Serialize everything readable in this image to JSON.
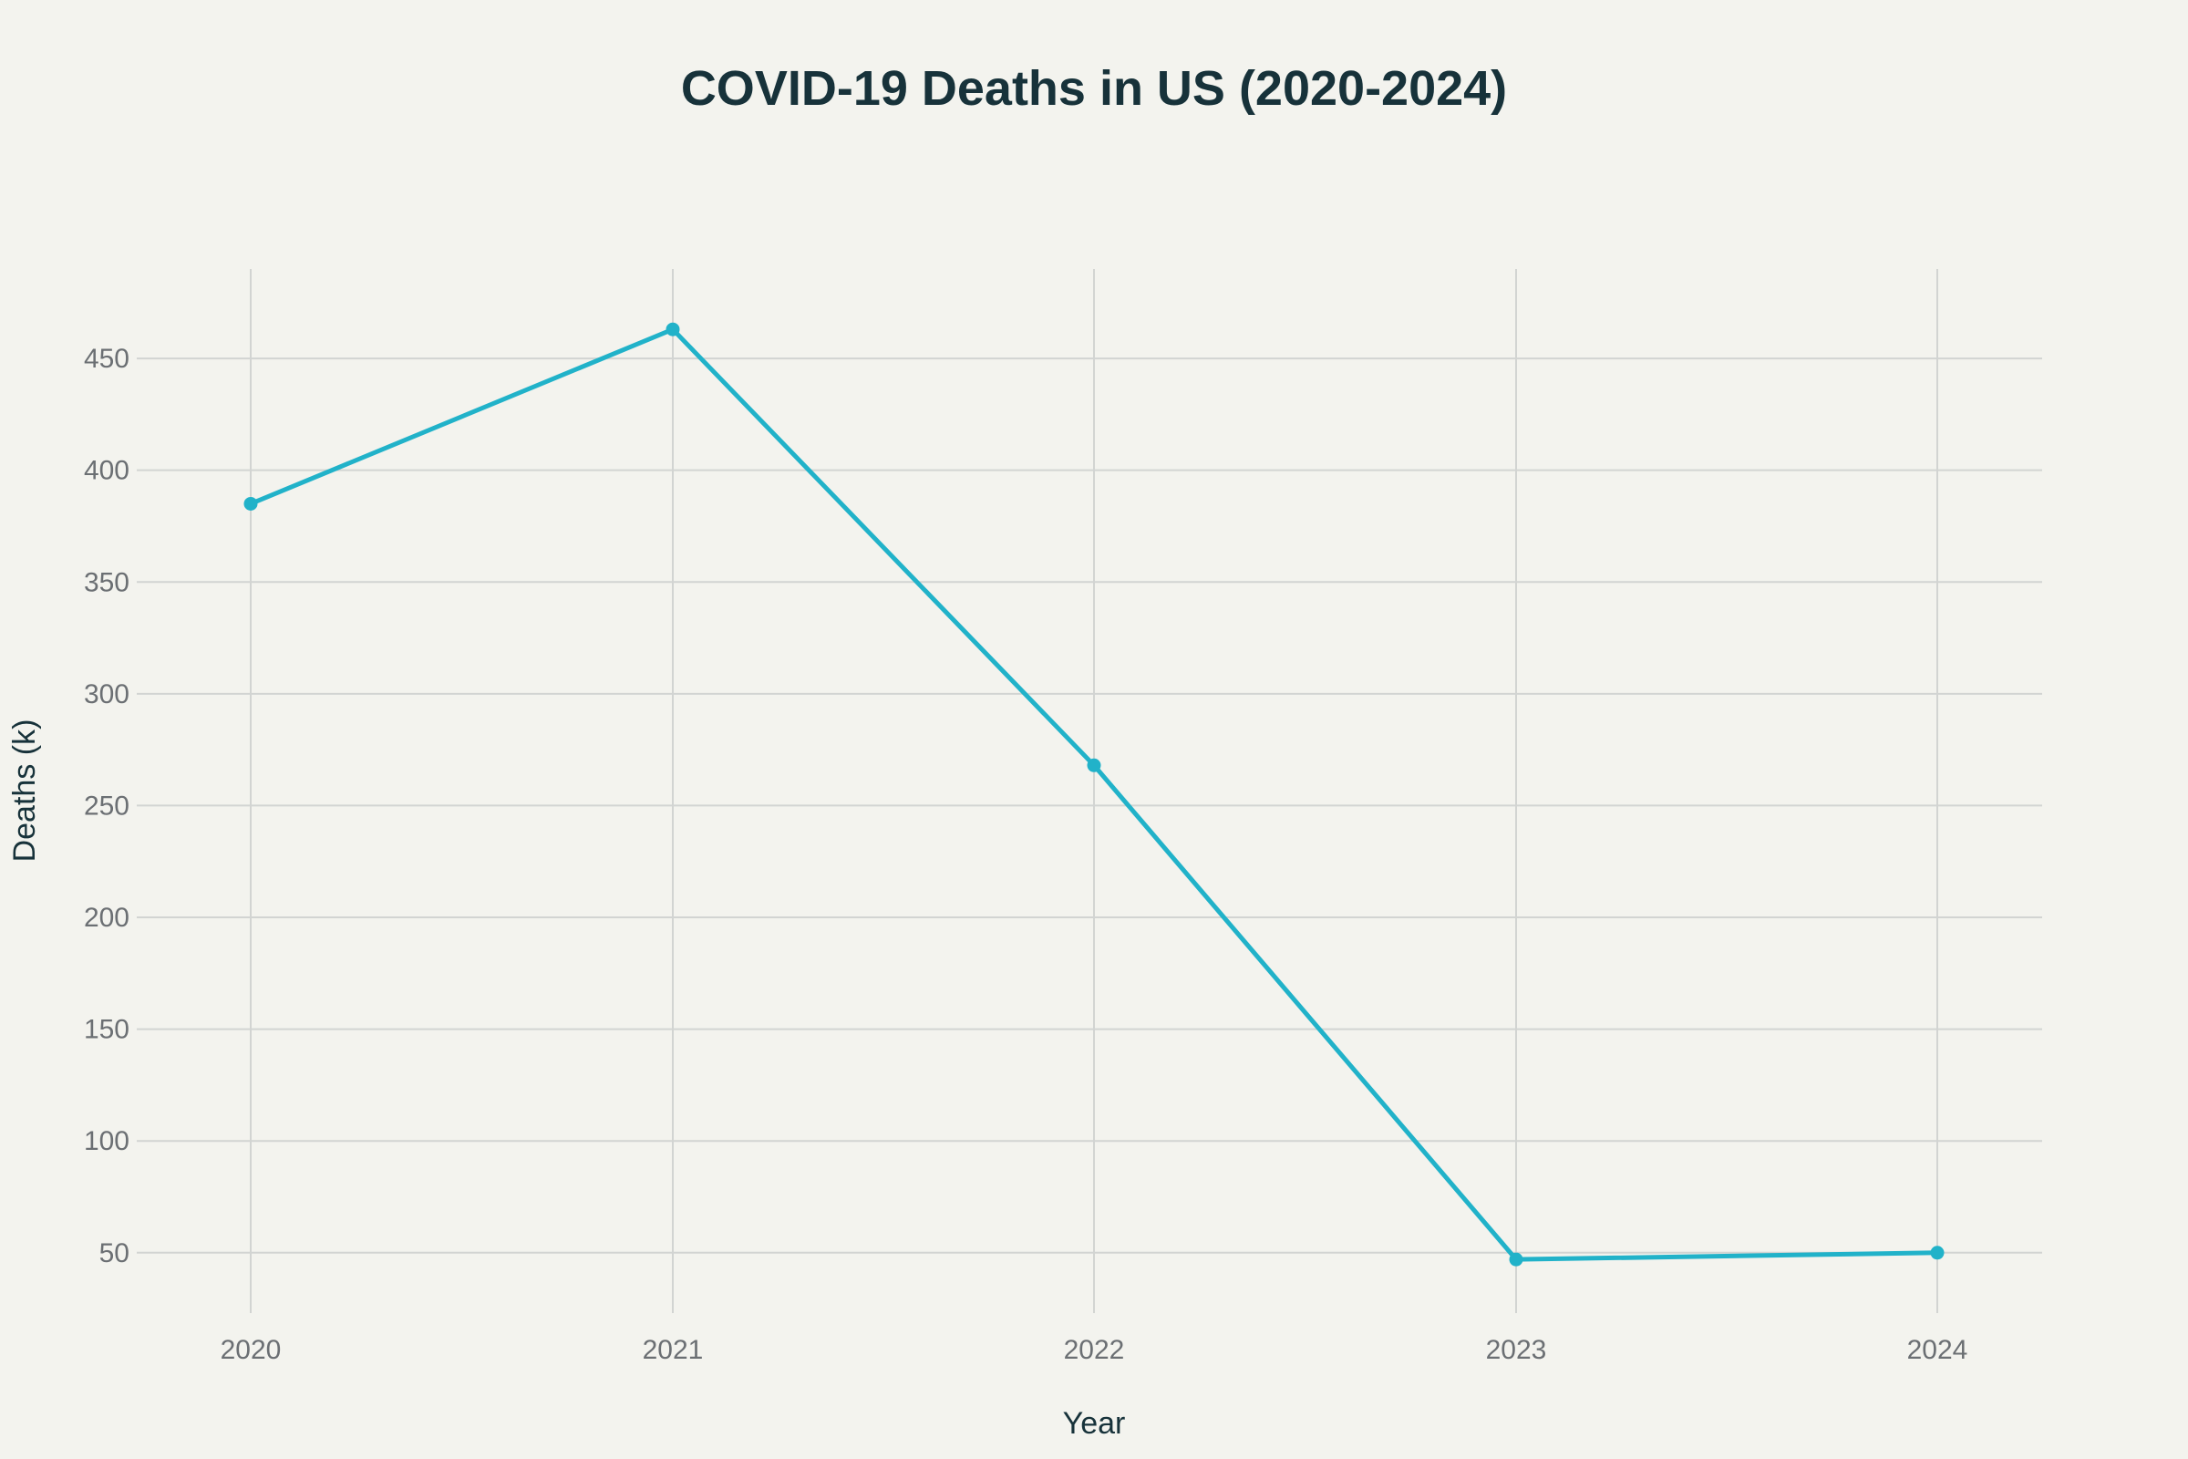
{
  "chart_data": {
    "type": "line",
    "title": "COVID-19 Deaths in US (2020-2024)",
    "xlabel": "Year",
    "ylabel": "Deaths (k)",
    "x": [
      "2020",
      "2021",
      "2022",
      "2023",
      "2024"
    ],
    "series": [
      {
        "values": [
          385,
          463,
          268,
          47,
          50
        ],
        "color": "#21b2c9"
      }
    ],
    "yticks": [
      50,
      100,
      150,
      200,
      250,
      300,
      350,
      400,
      450
    ],
    "ylim": [
      23,
      490
    ],
    "grid": true,
    "legend": "none"
  },
  "colors": {
    "background": "#f3f3ee",
    "grid": "#d2d4d2",
    "title": "#17323a",
    "tick_label": "#6b6f73",
    "line": "#21b2c9"
  }
}
